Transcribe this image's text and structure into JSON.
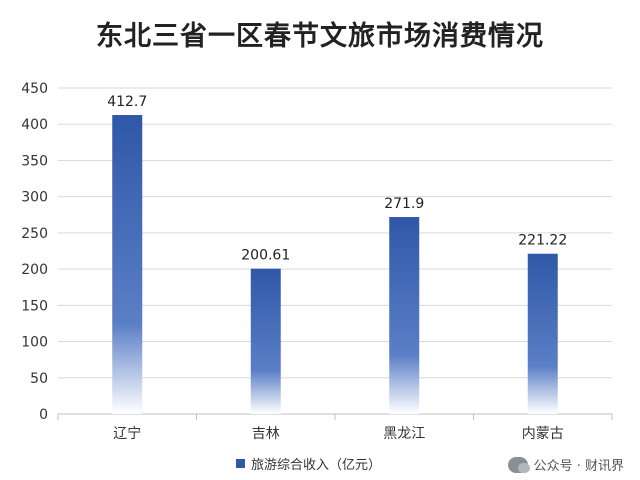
{
  "chart_data": {
    "type": "bar",
    "title": "东北三省一区春节文旅市场消费情况",
    "categories": [
      "辽宁",
      "吉林",
      "黑龙江",
      "内蒙古"
    ],
    "series": [
      {
        "name": "旅游综合收入（亿元）",
        "values": [
          412.7,
          200.61,
          271.9,
          221.22
        ]
      }
    ],
    "data_labels": [
      "412.7",
      "200.61",
      "271.9",
      "221.22"
    ],
    "yticks": [
      0,
      50,
      100,
      150,
      200,
      250,
      300,
      350,
      400,
      450
    ],
    "ylim": [
      0,
      450
    ],
    "grid": true,
    "legend_position": "bottom",
    "colors": {
      "bar_top": "#2f58a8",
      "bar_bottom": "#ffffff",
      "grid": "#d9d9d9",
      "axis": "#bfbfbf"
    }
  },
  "watermark": {
    "text": "公众号 · 财讯界",
    "icon": "wechat-icon"
  }
}
